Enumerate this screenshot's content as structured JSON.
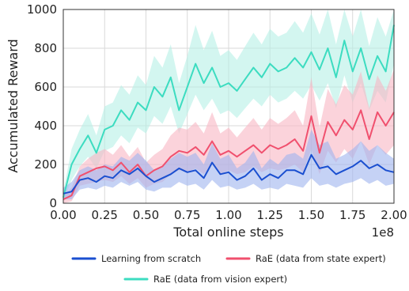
{
  "chart_data": {
    "type": "line",
    "title": "",
    "xlabel": "Total online steps",
    "ylabel": "Accumulated Reward",
    "x_multiplier_label": "1e8",
    "xlim": [
      0.0,
      2.0
    ],
    "ylim": [
      0,
      1000
    ],
    "xticks": [
      "0.00",
      "0.25",
      "0.50",
      "0.75",
      "1.00",
      "1.25",
      "1.50",
      "1.75",
      "2.00"
    ],
    "yticks": [
      "0",
      "200",
      "400",
      "600",
      "800",
      "1000"
    ],
    "grid": true,
    "legend_position": "bottom",
    "x": [
      0.0,
      0.05,
      0.1,
      0.15,
      0.2,
      0.25,
      0.3,
      0.35,
      0.4,
      0.45,
      0.5,
      0.55,
      0.6,
      0.65,
      0.7,
      0.75,
      0.8,
      0.85,
      0.9,
      0.95,
      1.0,
      1.05,
      1.1,
      1.15,
      1.2,
      1.25,
      1.3,
      1.35,
      1.4,
      1.45,
      1.5,
      1.55,
      1.6,
      1.65,
      1.7,
      1.75,
      1.8,
      1.85,
      1.9,
      1.95,
      2.0
    ],
    "series": [
      {
        "name": "Learning from scratch",
        "color": "#1a4fd0",
        "band_color": "#9eb4ee",
        "values": [
          50,
          60,
          120,
          130,
          110,
          140,
          130,
          170,
          150,
          180,
          140,
          110,
          130,
          150,
          180,
          160,
          170,
          130,
          210,
          150,
          160,
          120,
          140,
          180,
          120,
          150,
          130,
          170,
          170,
          150,
          250,
          180,
          190,
          150,
          170,
          190,
          220,
          180,
          200,
          170,
          160
        ],
        "lower": [
          20,
          20,
          70,
          80,
          70,
          90,
          80,
          110,
          90,
          110,
          70,
          60,
          80,
          80,
          110,
          90,
          100,
          70,
          120,
          80,
          90,
          70,
          80,
          100,
          70,
          80,
          70,
          100,
          90,
          80,
          130,
          90,
          100,
          80,
          100,
          110,
          130,
          100,
          120,
          90,
          100
        ],
        "upper": [
          80,
          110,
          170,
          190,
          170,
          200,
          190,
          240,
          220,
          260,
          220,
          170,
          190,
          230,
          260,
          240,
          260,
          200,
          310,
          230,
          250,
          180,
          210,
          270,
          180,
          230,
          200,
          250,
          260,
          230,
          380,
          300,
          320,
          230,
          250,
          280,
          320,
          270,
          300,
          260,
          230
        ]
      },
      {
        "name": "RaE (data from state expert)",
        "color": "#f0506e",
        "band_color": "#f8b6c3",
        "values": [
          20,
          40,
          140,
          160,
          180,
          190,
          170,
          210,
          160,
          200,
          140,
          170,
          190,
          240,
          270,
          260,
          290,
          250,
          320,
          250,
          270,
          240,
          270,
          300,
          260,
          300,
          280,
          300,
          330,
          270,
          450,
          260,
          420,
          350,
          430,
          380,
          480,
          330,
          470,
          400,
          470
        ],
        "lower": [
          0,
          10,
          90,
          100,
          110,
          120,
          110,
          140,
          100,
          130,
          80,
          100,
          110,
          150,
          170,
          160,
          180,
          150,
          200,
          150,
          170,
          150,
          160,
          190,
          160,
          180,
          170,
          180,
          200,
          160,
          280,
          150,
          270,
          210,
          280,
          230,
          320,
          200,
          300,
          250,
          300
        ],
        "upper": [
          40,
          80,
          190,
          230,
          260,
          280,
          250,
          300,
          240,
          290,
          210,
          250,
          280,
          350,
          390,
          380,
          420,
          360,
          470,
          360,
          390,
          340,
          390,
          440,
          380,
          440,
          410,
          440,
          480,
          400,
          650,
          390,
          590,
          510,
          610,
          560,
          680,
          490,
          660,
          580,
          690
        ]
      },
      {
        "name": "RaE (data from vision expert)",
        "color": "#3cdcc0",
        "band_color": "#b6f0e6",
        "values": [
          30,
          200,
          280,
          350,
          260,
          380,
          400,
          480,
          430,
          520,
          480,
          600,
          550,
          650,
          480,
          600,
          720,
          620,
          700,
          600,
          620,
          580,
          640,
          700,
          650,
          720,
          680,
          700,
          750,
          700,
          780,
          690,
          800,
          650,
          840,
          680,
          800,
          640,
          760,
          680,
          920
        ],
        "lower": [
          10,
          120,
          190,
          240,
          180,
          270,
          290,
          350,
          310,
          390,
          360,
          450,
          410,
          500,
          360,
          460,
          560,
          480,
          540,
          460,
          480,
          440,
          490,
          540,
          500,
          560,
          520,
          540,
          580,
          540,
          610,
          530,
          620,
          490,
          660,
          520,
          620,
          480,
          580,
          520,
          720
        ],
        "upper": [
          60,
          280,
          380,
          460,
          350,
          500,
          520,
          610,
          560,
          660,
          610,
          760,
          700,
          820,
          620,
          760,
          920,
          790,
          890,
          760,
          790,
          740,
          810,
          880,
          820,
          900,
          860,
          880,
          940,
          880,
          980,
          870,
          1000,
          820,
          1000,
          860,
          1000,
          810,
          960,
          860,
          1000
        ]
      }
    ]
  }
}
